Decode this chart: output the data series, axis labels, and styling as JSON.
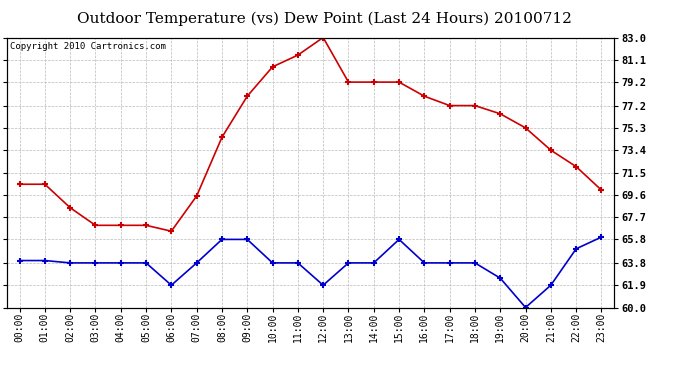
{
  "title": "Outdoor Temperature (vs) Dew Point (Last 24 Hours) 20100712",
  "copyright": "Copyright 2010 Cartronics.com",
  "hours": [
    "00:00",
    "01:00",
    "02:00",
    "03:00",
    "04:00",
    "05:00",
    "06:00",
    "07:00",
    "08:00",
    "09:00",
    "10:00",
    "11:00",
    "12:00",
    "13:00",
    "14:00",
    "15:00",
    "16:00",
    "17:00",
    "18:00",
    "19:00",
    "20:00",
    "21:00",
    "22:00",
    "23:00"
  ],
  "temp": [
    70.5,
    70.5,
    68.5,
    67.0,
    67.0,
    67.0,
    66.5,
    69.5,
    74.5,
    78.0,
    80.5,
    81.5,
    83.0,
    79.2,
    79.2,
    79.2,
    78.0,
    77.2,
    77.2,
    76.5,
    75.3,
    73.4,
    72.0,
    70.0
  ],
  "dew": [
    64.0,
    64.0,
    63.8,
    63.8,
    63.8,
    63.8,
    61.9,
    63.8,
    65.8,
    65.8,
    63.8,
    63.8,
    61.9,
    63.8,
    63.8,
    65.8,
    63.8,
    63.8,
    63.8,
    62.5,
    60.0,
    61.9,
    65.0,
    66.0
  ],
  "temp_color": "#cc0000",
  "dew_color": "#0000cc",
  "ylim_min": 60.0,
  "ylim_max": 83.0,
  "yticks": [
    60.0,
    61.9,
    63.8,
    65.8,
    67.7,
    69.6,
    71.5,
    73.4,
    75.3,
    77.2,
    79.2,
    81.1,
    83.0
  ],
  "background_color": "#ffffff",
  "plot_bg_color": "#ffffff",
  "grid_color": "#bbbbbb",
  "title_fontsize": 11,
  "copyright_fontsize": 6.5
}
